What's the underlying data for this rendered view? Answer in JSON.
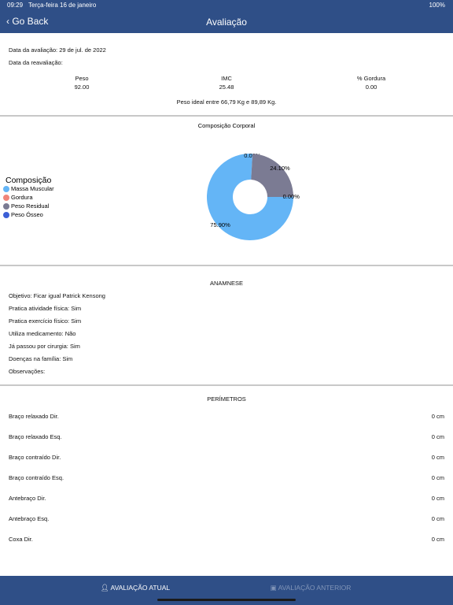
{
  "status_bar": {
    "time": "09:29",
    "date": "Terça-feira 16 de janeiro",
    "battery": "100%"
  },
  "nav": {
    "back": "Go Back",
    "title": "Avaliação"
  },
  "summary": {
    "date": "Data da avaliação: 29 de jul. de 2022",
    "reevaluation": "Data da reavaliação:",
    "stats": [
      {
        "label": "Peso",
        "value": "92.00"
      },
      {
        "label": "IMC",
        "value": "25.48"
      },
      {
        "label": "% Gordura",
        "value": "0.00"
      }
    ],
    "ideal": "Peso ideal entre 66,79 Kg e 89,89 Kg."
  },
  "chart_data": {
    "type": "donut",
    "title": "Composição Corporal",
    "legend_title": "Composição",
    "legend": "left",
    "categories": [
      "Massa Muscular",
      "Gordura",
      "Peso Residual",
      "Peso Ósseo"
    ],
    "colors": [
      "#64b5f6",
      "#f0857a",
      "#7b7b93",
      "#3c5fd6"
    ],
    "values": [
      75.9,
      0,
      24.1,
      0
    ],
    "value_labels": [
      "75.90%",
      "0.00%",
      "24.10%",
      "0.00%"
    ]
  },
  "anamnese": {
    "title": "ANAMNESE",
    "lines": [
      "Objetivo: Ficar igual Patrick Kensong",
      "Pratica atividade física: Sim",
      "Pratica exercício físico: Sim",
      "Utiliza medicamento: Não",
      "Já passou por cirurgia: Sim",
      "Doenças na família: Sim",
      "Observações:"
    ]
  },
  "perimetros": {
    "title": "PERÍMETROS",
    "rows": [
      [
        "Braço relaxado Dir.",
        "0 cm"
      ],
      [
        "Braço relaxado Esq.",
        "0 cm"
      ],
      [
        "Braço contraído Dir.",
        "0 cm"
      ],
      [
        "Braço contraído Esq.",
        "0 cm"
      ],
      [
        "Antebraço Dir.",
        "0 cm"
      ],
      [
        "Antebraço Esq.",
        "0 cm"
      ],
      [
        "Coxa Dir.",
        "0 cm"
      ]
    ]
  },
  "tabs": [
    "AVALIAÇÃO ATUAL",
    "AVALIAÇÃO ANTERIOR"
  ]
}
